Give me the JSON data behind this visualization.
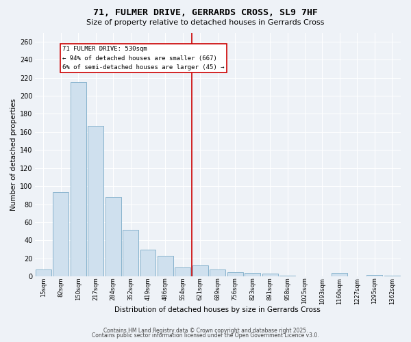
{
  "title_line1": "71, FULMER DRIVE, GERRARDS CROSS, SL9 7HF",
  "title_line2": "Size of property relative to detached houses in Gerrards Cross",
  "xlabel": "Distribution of detached houses by size in Gerrards Cross",
  "ylabel": "Number of detached properties",
  "bar_color": "#cfe0ee",
  "bar_edge_color": "#7aaac8",
  "background_color": "#eef2f7",
  "grid_color": "#ffffff",
  "annotation_text": "71 FULMER DRIVE: 530sqm\n← 94% of detached houses are smaller (667)\n6% of semi-detached houses are larger (45) →",
  "vline_x": 8.5,
  "vline_color": "#cc0000",
  "annotation_box_color": "#cc0000",
  "categories": [
    "15sqm",
    "82sqm",
    "150sqm",
    "217sqm",
    "284sqm",
    "352sqm",
    "419sqm",
    "486sqm",
    "554sqm",
    "621sqm",
    "689sqm",
    "756sqm",
    "823sqm",
    "891sqm",
    "958sqm",
    "1025sqm",
    "1093sqm",
    "1160sqm",
    "1227sqm",
    "1295sqm",
    "1362sqm"
  ],
  "values": [
    8,
    93,
    215,
    167,
    88,
    52,
    30,
    23,
    10,
    12,
    8,
    5,
    4,
    3,
    1,
    0,
    0,
    4,
    0,
    2,
    1
  ],
  "ylim": [
    0,
    270
  ],
  "yticks": [
    0,
    20,
    40,
    60,
    80,
    100,
    120,
    140,
    160,
    180,
    200,
    220,
    240,
    260
  ],
  "footer_line1": "Contains HM Land Registry data © Crown copyright and database right 2025.",
  "footer_line2": "Contains public sector information licensed under the Open Government Licence v3.0."
}
